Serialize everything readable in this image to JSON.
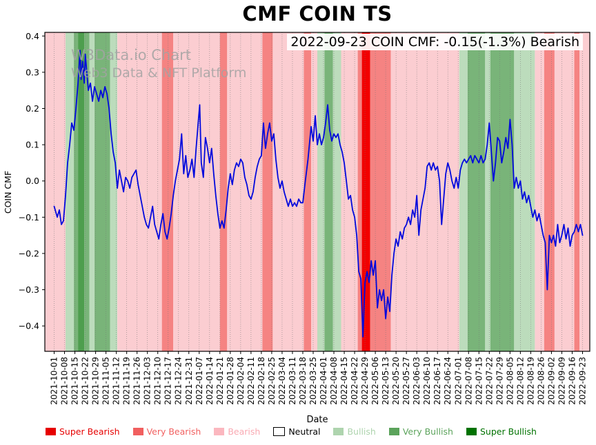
{
  "header": {
    "title": "CMF COIN TS"
  },
  "annotation": {
    "text": "2022-09-23 COIN CMF: -0.15(-1.3%) Bearish"
  },
  "watermark": {
    "line1": "W3Data.io Chart",
    "line2": "Web3 Data & NFT Platform"
  },
  "chart_data": {
    "type": "line",
    "title": "CMF COIN TS",
    "xlabel": "Date",
    "ylabel": "COIN CMF",
    "ylim": [
      -0.47,
      0.41
    ],
    "x_range_weeks": [
      -0.9,
      51.7
    ],
    "grid": "vertical-dotted",
    "legend_position": "bottom",
    "latest": {
      "date": "2022-09-23",
      "cmf": -0.15,
      "change_pct": -1.3,
      "signal": "Bearish"
    },
    "line": {
      "name": "COIN CMF",
      "color": "#0008dd",
      "width": 1.8
    },
    "yticks": [
      {
        "value": 0.4,
        "label": "0.4"
      },
      {
        "value": 0.3,
        "label": "0.3"
      },
      {
        "value": 0.2,
        "label": "0.2"
      },
      {
        "value": 0.1,
        "label": "0.1"
      },
      {
        "value": 0.0,
        "label": "0.0"
      },
      {
        "value": -0.1,
        "label": "−0.1"
      },
      {
        "value": -0.2,
        "label": "−0.2"
      },
      {
        "value": -0.3,
        "label": "−0.3"
      },
      {
        "value": -0.4,
        "label": "−0.4"
      }
    ],
    "x_tick_dates": [
      "2021-10-01",
      "2021-10-08",
      "2021-10-15",
      "2021-10-22",
      "2021-10-29",
      "2021-11-05",
      "2021-11-12",
      "2021-11-19",
      "2021-11-26",
      "2021-12-03",
      "2021-12-10",
      "2021-12-17",
      "2021-12-24",
      "2021-12-31",
      "2022-01-07",
      "2022-01-14",
      "2022-01-21",
      "2022-01-28",
      "2022-02-04",
      "2022-02-11",
      "2022-02-18",
      "2022-02-25",
      "2022-03-04",
      "2022-03-11",
      "2022-03-18",
      "2022-03-25",
      "2022-04-01",
      "2022-04-08",
      "2022-04-15",
      "2022-04-22",
      "2022-04-29",
      "2022-05-06",
      "2022-05-13",
      "2022-05-20",
      "2022-05-27",
      "2022-06-03",
      "2022-06-10",
      "2022-06-17",
      "2022-06-24",
      "2022-07-01",
      "2022-07-08",
      "2022-07-15",
      "2022-07-22",
      "2022-07-29",
      "2022-08-05",
      "2022-08-12",
      "2022-08-19",
      "2022-08-26",
      "2022-09-02",
      "2022-09-09",
      "2022-09-16",
      "2022-09-23"
    ],
    "band_colors": {
      "super_bearish": "#f20000",
      "very_bearish": "#f58382",
      "bearish": "#fbcdd1",
      "neutral": "#ffffff",
      "bullish": "#bcdcbc",
      "very_bullish": "#79b479",
      "super_bullish": "#4e9e4e"
    },
    "bands": [
      [
        -0.9,
        1.1,
        "bearish"
      ],
      [
        1.1,
        1.9,
        "bullish"
      ],
      [
        1.9,
        2.3,
        "very_bullish"
      ],
      [
        2.3,
        2.9,
        "super_bullish"
      ],
      [
        2.9,
        3.4,
        "very_bullish"
      ],
      [
        3.4,
        3.9,
        "bullish"
      ],
      [
        3.9,
        5.4,
        "very_bullish"
      ],
      [
        5.4,
        6.1,
        "bullish"
      ],
      [
        6.1,
        10.4,
        "bearish"
      ],
      [
        10.4,
        11.5,
        "very_bearish"
      ],
      [
        11.5,
        16.0,
        "bearish"
      ],
      [
        16.0,
        16.7,
        "very_bearish"
      ],
      [
        16.7,
        20.1,
        "bearish"
      ],
      [
        20.1,
        21.1,
        "very_bearish"
      ],
      [
        21.1,
        24.1,
        "bearish"
      ],
      [
        24.1,
        24.8,
        "very_bearish"
      ],
      [
        24.8,
        25.4,
        "bearish"
      ],
      [
        25.4,
        26.1,
        "bullish"
      ],
      [
        26.1,
        26.9,
        "very_bullish"
      ],
      [
        26.9,
        27.7,
        "bullish"
      ],
      [
        27.7,
        29.3,
        "bearish"
      ],
      [
        29.3,
        29.7,
        "very_bearish"
      ],
      [
        29.7,
        30.5,
        "super_bearish"
      ],
      [
        30.5,
        32.5,
        "very_bearish"
      ],
      [
        32.5,
        39.1,
        "bearish"
      ],
      [
        39.1,
        39.9,
        "bullish"
      ],
      [
        39.9,
        41.6,
        "very_bullish"
      ],
      [
        41.6,
        42.1,
        "bullish"
      ],
      [
        42.1,
        44.4,
        "very_bullish"
      ],
      [
        44.4,
        46.4,
        "bullish"
      ],
      [
        46.4,
        47.3,
        "bearish"
      ],
      [
        47.3,
        48.3,
        "very_bearish"
      ],
      [
        48.3,
        50.2,
        "bearish"
      ],
      [
        50.2,
        50.7,
        "very_bearish"
      ],
      [
        50.7,
        51.7,
        "bearish"
      ]
    ],
    "points": [
      [
        0.0,
        -0.07
      ],
      [
        0.3,
        -0.1
      ],
      [
        0.5,
        -0.08
      ],
      [
        0.7,
        -0.12
      ],
      [
        0.9,
        -0.11
      ],
      [
        1.1,
        -0.04
      ],
      [
        1.3,
        0.05
      ],
      [
        1.5,
        0.1
      ],
      [
        1.7,
        0.16
      ],
      [
        1.9,
        0.14
      ],
      [
        2.1,
        0.2
      ],
      [
        2.3,
        0.27
      ],
      [
        2.5,
        0.36
      ],
      [
        2.6,
        0.28
      ],
      [
        2.75,
        0.33
      ],
      [
        2.9,
        0.27
      ],
      [
        3.0,
        0.35
      ],
      [
        3.15,
        0.3
      ],
      [
        3.3,
        0.25
      ],
      [
        3.5,
        0.27
      ],
      [
        3.7,
        0.22
      ],
      [
        3.9,
        0.26
      ],
      [
        4.1,
        0.24
      ],
      [
        4.3,
        0.22
      ],
      [
        4.5,
        0.25
      ],
      [
        4.7,
        0.23
      ],
      [
        4.9,
        0.26
      ],
      [
        5.1,
        0.24
      ],
      [
        5.3,
        0.2
      ],
      [
        5.5,
        0.13
      ],
      [
        5.7,
        0.08
      ],
      [
        5.9,
        0.05
      ],
      [
        6.1,
        -0.02
      ],
      [
        6.3,
        0.03
      ],
      [
        6.5,
        0.0
      ],
      [
        6.7,
        -0.03
      ],
      [
        6.9,
        0.01
      ],
      [
        7.1,
        0.0
      ],
      [
        7.3,
        -0.02
      ],
      [
        7.5,
        0.01
      ],
      [
        7.7,
        0.02
      ],
      [
        7.9,
        0.03
      ],
      [
        8.1,
        -0.01
      ],
      [
        8.3,
        -0.04
      ],
      [
        8.5,
        -0.07
      ],
      [
        8.7,
        -0.1
      ],
      [
        8.9,
        -0.12
      ],
      [
        9.1,
        -0.13
      ],
      [
        9.3,
        -0.1
      ],
      [
        9.5,
        -0.07
      ],
      [
        9.7,
        -0.12
      ],
      [
        9.9,
        -0.14
      ],
      [
        10.1,
        -0.16
      ],
      [
        10.3,
        -0.12
      ],
      [
        10.5,
        -0.09
      ],
      [
        10.7,
        -0.14
      ],
      [
        10.9,
        -0.16
      ],
      [
        11.1,
        -0.13
      ],
      [
        11.3,
        -0.09
      ],
      [
        11.5,
        -0.04
      ],
      [
        11.7,
        0.0
      ],
      [
        11.9,
        0.03
      ],
      [
        12.1,
        0.06
      ],
      [
        12.3,
        0.13
      ],
      [
        12.5,
        0.02
      ],
      [
        12.7,
        0.07
      ],
      [
        12.9,
        0.01
      ],
      [
        13.1,
        0.03
      ],
      [
        13.3,
        0.06
      ],
      [
        13.5,
        0.01
      ],
      [
        13.7,
        0.09
      ],
      [
        13.9,
        0.16
      ],
      [
        14.05,
        0.21
      ],
      [
        14.2,
        0.05
      ],
      [
        14.4,
        0.01
      ],
      [
        14.6,
        0.12
      ],
      [
        14.8,
        0.09
      ],
      [
        15.0,
        0.05
      ],
      [
        15.2,
        0.09
      ],
      [
        15.4,
        0.02
      ],
      [
        15.6,
        -0.04
      ],
      [
        15.8,
        -0.09
      ],
      [
        16.0,
        -0.13
      ],
      [
        16.2,
        -0.11
      ],
      [
        16.4,
        -0.13
      ],
      [
        16.6,
        -0.08
      ],
      [
        16.8,
        -0.02
      ],
      [
        17.0,
        0.02
      ],
      [
        17.2,
        -0.01
      ],
      [
        17.4,
        0.03
      ],
      [
        17.6,
        0.05
      ],
      [
        17.8,
        0.04
      ],
      [
        18.0,
        0.06
      ],
      [
        18.2,
        0.05
      ],
      [
        18.4,
        0.01
      ],
      [
        18.6,
        -0.01
      ],
      [
        18.8,
        -0.04
      ],
      [
        19.0,
        -0.05
      ],
      [
        19.2,
        -0.03
      ],
      [
        19.4,
        0.01
      ],
      [
        19.6,
        0.04
      ],
      [
        19.8,
        0.06
      ],
      [
        20.0,
        0.07
      ],
      [
        20.2,
        0.16
      ],
      [
        20.4,
        0.09
      ],
      [
        20.6,
        0.13
      ],
      [
        20.8,
        0.16
      ],
      [
        21.0,
        0.11
      ],
      [
        21.2,
        0.13
      ],
      [
        21.4,
        0.06
      ],
      [
        21.6,
        0.01
      ],
      [
        21.8,
        -0.02
      ],
      [
        22.0,
        0.0
      ],
      [
        22.2,
        -0.03
      ],
      [
        22.4,
        -0.05
      ],
      [
        22.6,
        -0.07
      ],
      [
        22.8,
        -0.05
      ],
      [
        23.0,
        -0.07
      ],
      [
        23.2,
        -0.06
      ],
      [
        23.4,
        -0.07
      ],
      [
        23.6,
        -0.05
      ],
      [
        23.8,
        -0.06
      ],
      [
        24.0,
        -0.06
      ],
      [
        24.2,
        -0.01
      ],
      [
        24.5,
        0.06
      ],
      [
        24.8,
        0.15
      ],
      [
        25.0,
        0.11
      ],
      [
        25.2,
        0.18
      ],
      [
        25.4,
        0.1
      ],
      [
        25.6,
        0.13
      ],
      [
        25.8,
        0.1
      ],
      [
        26.0,
        0.12
      ],
      [
        26.2,
        0.16
      ],
      [
        26.4,
        0.21
      ],
      [
        26.6,
        0.14
      ],
      [
        26.8,
        0.11
      ],
      [
        27.0,
        0.13
      ],
      [
        27.2,
        0.12
      ],
      [
        27.4,
        0.13
      ],
      [
        27.6,
        0.1
      ],
      [
        27.8,
        0.08
      ],
      [
        28.0,
        0.05
      ],
      [
        28.2,
        0.0
      ],
      [
        28.4,
        -0.05
      ],
      [
        28.6,
        -0.04
      ],
      [
        28.8,
        -0.08
      ],
      [
        29.0,
        -0.1
      ],
      [
        29.2,
        -0.15
      ],
      [
        29.4,
        -0.25
      ],
      [
        29.6,
        -0.27
      ],
      [
        29.8,
        -0.43
      ],
      [
        30.0,
        -0.28
      ],
      [
        30.2,
        -0.25
      ],
      [
        30.4,
        -0.28
      ],
      [
        30.6,
        -0.22
      ],
      [
        30.8,
        -0.26
      ],
      [
        31.0,
        -0.22
      ],
      [
        31.2,
        -0.35
      ],
      [
        31.4,
        -0.3
      ],
      [
        31.6,
        -0.33
      ],
      [
        31.8,
        -0.3
      ],
      [
        32.0,
        -0.38
      ],
      [
        32.2,
        -0.32
      ],
      [
        32.4,
        -0.36
      ],
      [
        32.6,
        -0.26
      ],
      [
        32.8,
        -0.2
      ],
      [
        33.0,
        -0.16
      ],
      [
        33.2,
        -0.18
      ],
      [
        33.4,
        -0.14
      ],
      [
        33.6,
        -0.16
      ],
      [
        33.8,
        -0.13
      ],
      [
        34.0,
        -0.12
      ],
      [
        34.2,
        -0.1
      ],
      [
        34.4,
        -0.12
      ],
      [
        34.6,
        -0.08
      ],
      [
        34.8,
        -0.1
      ],
      [
        35.0,
        -0.04
      ],
      [
        35.2,
        -0.15
      ],
      [
        35.4,
        -0.08
      ],
      [
        35.6,
        -0.05
      ],
      [
        35.8,
        -0.02
      ],
      [
        36.0,
        0.04
      ],
      [
        36.2,
        0.05
      ],
      [
        36.4,
        0.03
      ],
      [
        36.6,
        0.05
      ],
      [
        36.8,
        0.03
      ],
      [
        37.0,
        0.04
      ],
      [
        37.2,
        0.0
      ],
      [
        37.4,
        -0.12
      ],
      [
        37.6,
        -0.05
      ],
      [
        37.8,
        0.02
      ],
      [
        38.0,
        0.05
      ],
      [
        38.2,
        0.03
      ],
      [
        38.4,
        0.0
      ],
      [
        38.6,
        -0.02
      ],
      [
        38.8,
        0.01
      ],
      [
        39.0,
        -0.02
      ],
      [
        39.2,
        0.03
      ],
      [
        39.4,
        0.05
      ],
      [
        39.6,
        0.06
      ],
      [
        39.8,
        0.05
      ],
      [
        40.0,
        0.06
      ],
      [
        40.2,
        0.07
      ],
      [
        40.4,
        0.05
      ],
      [
        40.6,
        0.07
      ],
      [
        40.8,
        0.06
      ],
      [
        41.0,
        0.05
      ],
      [
        41.2,
        0.07
      ],
      [
        41.4,
        0.05
      ],
      [
        41.6,
        0.06
      ],
      [
        41.8,
        0.1
      ],
      [
        42.0,
        0.16
      ],
      [
        42.2,
        0.08
      ],
      [
        42.4,
        0.0
      ],
      [
        42.6,
        0.05
      ],
      [
        42.8,
        0.12
      ],
      [
        43.0,
        0.11
      ],
      [
        43.2,
        0.05
      ],
      [
        43.4,
        0.08
      ],
      [
        43.6,
        0.12
      ],
      [
        43.8,
        0.09
      ],
      [
        44.0,
        0.17
      ],
      [
        44.2,
        0.1
      ],
      [
        44.4,
        -0.02
      ],
      [
        44.6,
        0.01
      ],
      [
        44.8,
        -0.02
      ],
      [
        45.0,
        0.0
      ],
      [
        45.2,
        -0.05
      ],
      [
        45.4,
        -0.03
      ],
      [
        45.6,
        -0.06
      ],
      [
        45.8,
        -0.04
      ],
      [
        46.0,
        -0.07
      ],
      [
        46.2,
        -0.1
      ],
      [
        46.4,
        -0.08
      ],
      [
        46.6,
        -0.11
      ],
      [
        46.8,
        -0.09
      ],
      [
        47.0,
        -0.12
      ],
      [
        47.2,
        -0.15
      ],
      [
        47.4,
        -0.17
      ],
      [
        47.6,
        -0.3
      ],
      [
        47.8,
        -0.15
      ],
      [
        48.0,
        -0.17
      ],
      [
        48.2,
        -0.15
      ],
      [
        48.4,
        -0.18
      ],
      [
        48.6,
        -0.12
      ],
      [
        48.8,
        -0.17
      ],
      [
        49.0,
        -0.15
      ],
      [
        49.2,
        -0.12
      ],
      [
        49.4,
        -0.16
      ],
      [
        49.6,
        -0.13
      ],
      [
        49.8,
        -0.18
      ],
      [
        50.0,
        -0.15
      ],
      [
        50.2,
        -0.14
      ],
      [
        50.4,
        -0.12
      ],
      [
        50.6,
        -0.14
      ],
      [
        50.8,
        -0.12
      ],
      [
        51.0,
        -0.15
      ]
    ],
    "legend": [
      {
        "label": "Super Bearish",
        "swatch": "#e60000",
        "text_color": "#e60000"
      },
      {
        "label": "Very Bearish",
        "swatch": "#f15f5f",
        "text_color": "#f15f5f"
      },
      {
        "label": "Bearish",
        "swatch": "#fbb7bf",
        "text_color": "#f9a9b2"
      },
      {
        "label": "Neutral",
        "swatch": "#ffffff",
        "text_color": "#000000"
      },
      {
        "label": "Bullish",
        "swatch": "#aed4ae",
        "text_color": "#aed4ae"
      },
      {
        "label": "Very Bullish",
        "swatch": "#5ba35b",
        "text_color": "#5ba35b"
      },
      {
        "label": "Super Bullish",
        "swatch": "#007200",
        "text_color": "#007200"
      }
    ]
  }
}
